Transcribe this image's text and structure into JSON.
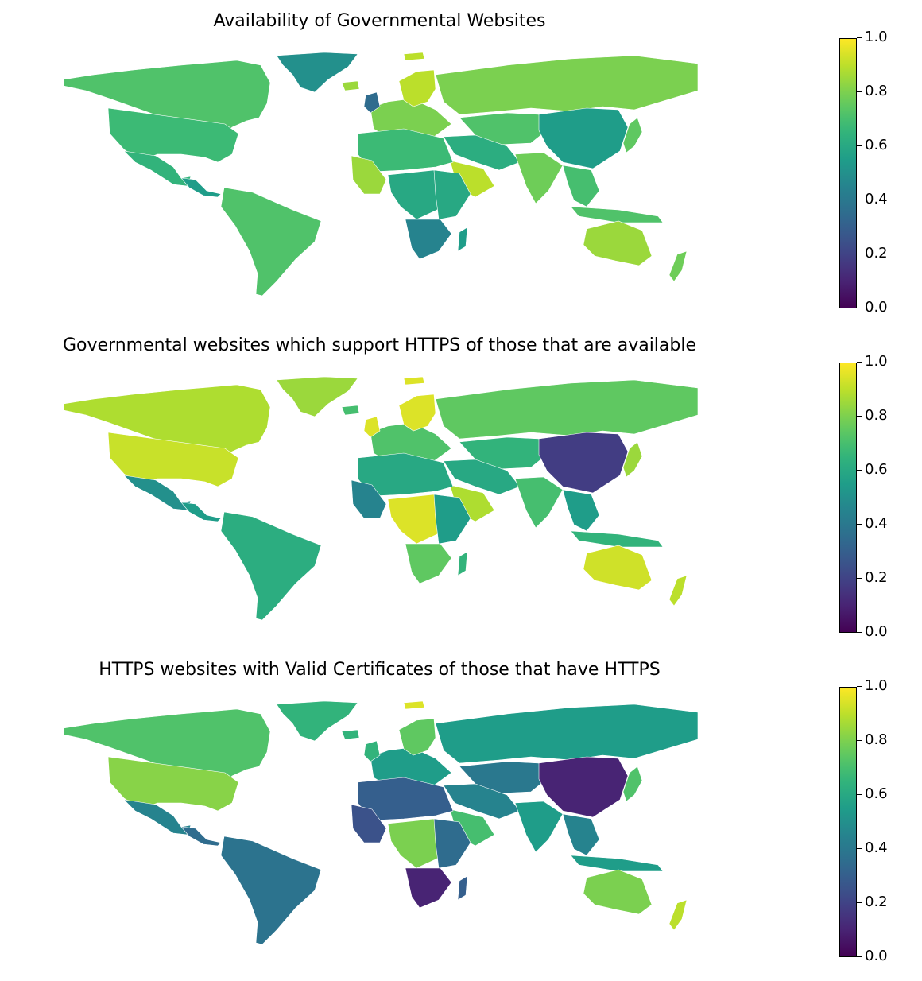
{
  "panels": [
    {
      "title": "Availability of Governmental Websites",
      "colorbar": {
        "ticks": [
          "0.0",
          "0.2",
          "0.4",
          "0.6",
          "0.8",
          "1.0"
        ],
        "min": 0,
        "max": 1,
        "colormap": "viridis"
      },
      "regions": {
        "north-america": 0.72,
        "greenland": 0.5,
        "usa": 0.68,
        "mexico": 0.65,
        "central-america": 0.55,
        "south-america": 0.72,
        "europe": 0.8,
        "scandinavia": 0.9,
        "uk-ireland": 0.35,
        "russia": 0.8,
        "central-asia": 0.72,
        "middle-east": 0.62,
        "arabia": 0.9,
        "china-mongolia": 0.55,
        "india": 0.78,
        "southeast-asia": 0.7,
        "japan": 0.75,
        "indonesia": 0.72,
        "north-africa": 0.68,
        "west-africa": 0.85,
        "central-africa": 0.6,
        "east-africa": 0.6,
        "southern-africa": 0.45,
        "madagascar": 0.55,
        "australia": 0.85,
        "new-zealand": 0.78,
        "iceland": 0.85,
        "svalbard": 0.9
      }
    },
    {
      "title": "Governmental websites which support HTTPS of those that are available",
      "colorbar": {
        "ticks": [
          "0.0",
          "0.2",
          "0.4",
          "0.6",
          "0.8",
          "1.0"
        ],
        "min": 0,
        "max": 1,
        "colormap": "viridis"
      },
      "regions": {
        "north-america": 0.88,
        "greenland": 0.85,
        "usa": 0.92,
        "mexico": 0.5,
        "central-america": 0.55,
        "south-america": 0.62,
        "europe": 0.72,
        "scandinavia": 0.95,
        "uk-ireland": 0.95,
        "russia": 0.75,
        "central-asia": 0.65,
        "middle-east": 0.6,
        "arabia": 0.88,
        "china-mongolia": 0.18,
        "india": 0.7,
        "southeast-asia": 0.55,
        "japan": 0.85,
        "indonesia": 0.65,
        "north-africa": 0.6,
        "west-africa": 0.45,
        "central-africa": 0.95,
        "east-africa": 0.55,
        "southern-africa": 0.75,
        "madagascar": 0.65,
        "australia": 0.93,
        "new-zealand": 0.9,
        "iceland": 0.7,
        "svalbard": 0.95
      }
    },
    {
      "title": "HTTPS websites with Valid Certificates of those that have HTTPS",
      "colorbar": {
        "ticks": [
          "0.0",
          "0.2",
          "0.4",
          "0.6",
          "0.8",
          "1.0"
        ],
        "min": 0,
        "max": 1,
        "colormap": "viridis"
      },
      "regions": {
        "north-america": 0.72,
        "greenland": 0.65,
        "usa": 0.82,
        "mexico": 0.45,
        "central-america": 0.35,
        "south-america": 0.38,
        "europe": 0.55,
        "scandinavia": 0.75,
        "uk-ireland": 0.65,
        "russia": 0.55,
        "central-asia": 0.4,
        "middle-east": 0.45,
        "arabia": 0.7,
        "china-mongolia": 0.1,
        "india": 0.55,
        "southeast-asia": 0.45,
        "japan": 0.72,
        "indonesia": 0.55,
        "north-africa": 0.3,
        "west-africa": 0.25,
        "central-africa": 0.8,
        "east-africa": 0.35,
        "southern-africa": 0.1,
        "madagascar": 0.3,
        "australia": 0.8,
        "new-zealand": 0.9,
        "iceland": 0.65,
        "svalbard": 0.95
      }
    }
  ]
}
